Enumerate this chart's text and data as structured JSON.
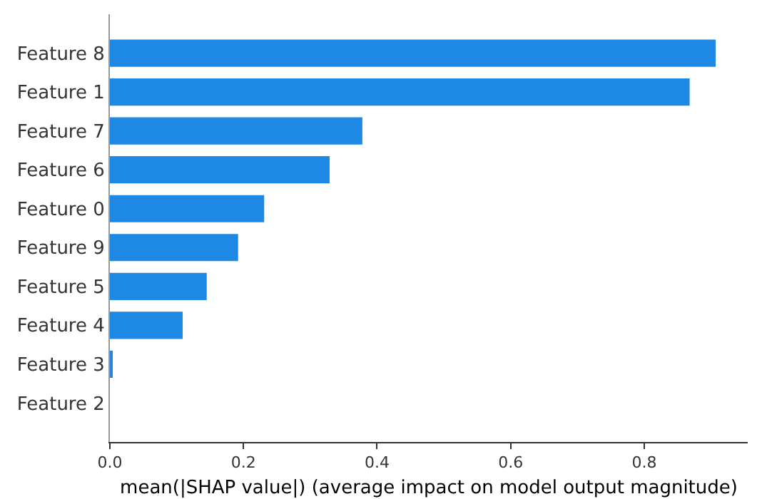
{
  "chart_data": {
    "type": "bar",
    "orientation": "horizontal",
    "categories": [
      "Feature 8",
      "Feature 1",
      "Feature 7",
      "Feature 6",
      "Feature 0",
      "Feature 9",
      "Feature 5",
      "Feature 4",
      "Feature 3",
      "Feature 2"
    ],
    "values": [
      0.907,
      0.868,
      0.378,
      0.329,
      0.231,
      0.192,
      0.145,
      0.109,
      0.004,
      0
    ],
    "color": "#1e88e5",
    "xlabel": "mean(|SHAP value|) (average impact on model output magnitude)",
    "xlim": [
      0,
      0.955
    ],
    "xticks": [
      {
        "value": 0,
        "label": "0.0"
      },
      0.2,
      0.4,
      0.6,
      0.8
    ],
    "grid": false
  }
}
